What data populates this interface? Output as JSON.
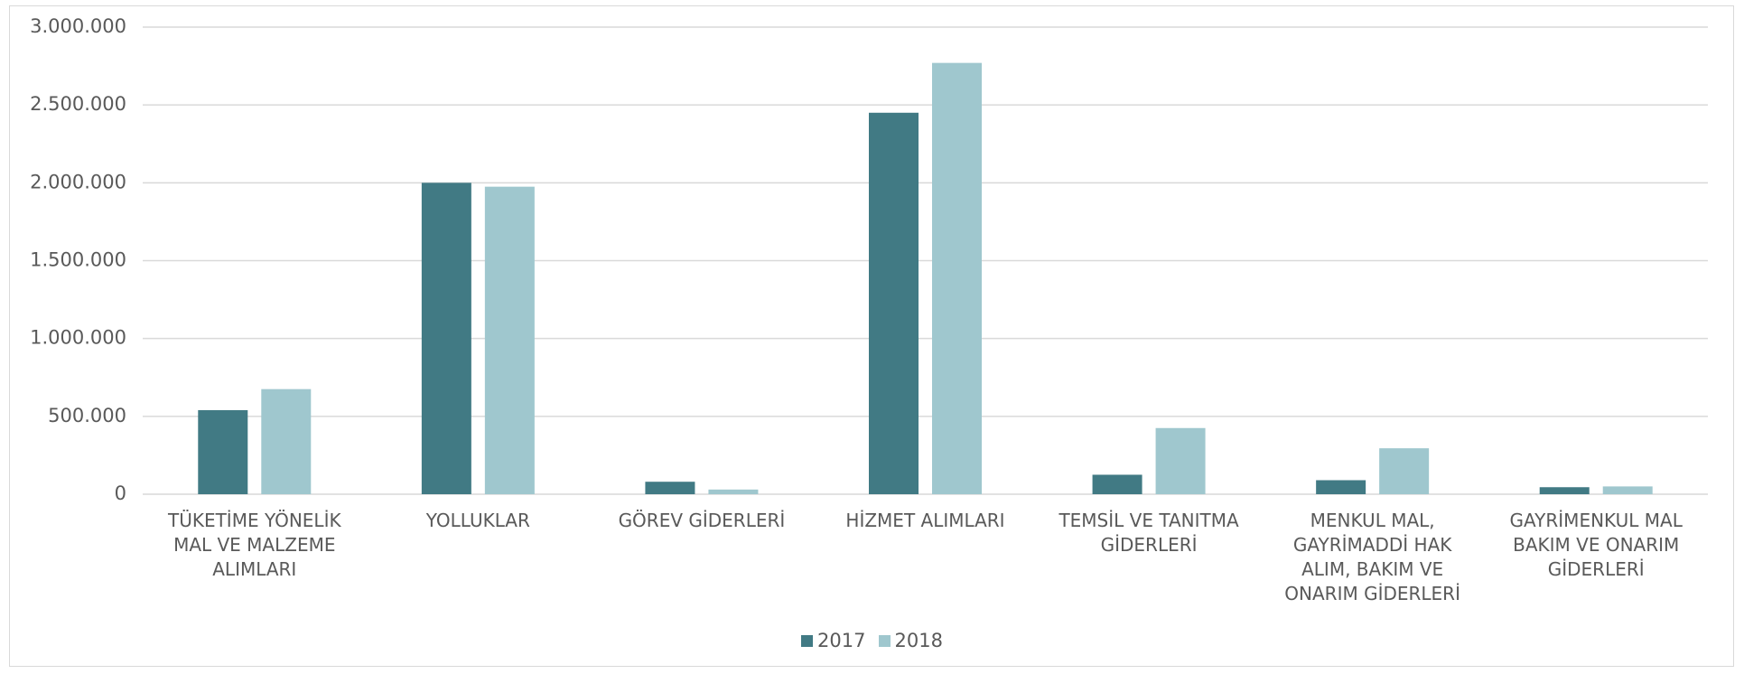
{
  "chart_data": {
    "type": "bar",
    "categories": [
      "TÜKETİME YÖNELİK MAL VE MALZEME ALIMLARI",
      "YOLLUKLAR",
      "GÖREV GİDERLERİ",
      "HİZMET ALIMLARI",
      "TEMSİL VE TANITMA GİDERLERİ",
      "MENKUL MAL, GAYRİMADDİ HAK ALIM, BAKIM VE ONARIM GİDERLERİ",
      "GAYRİMENKUL MAL BAKIM VE ONARIM GİDERLERİ"
    ],
    "series": [
      {
        "name": "2017",
        "color": "#417a84",
        "values": [
          540000,
          2000000,
          80000,
          2450000,
          125000,
          90000,
          45000
        ]
      },
      {
        "name": "2018",
        "color": "#9fc7ce",
        "values": [
          675000,
          1975000,
          30000,
          2770000,
          425000,
          295000,
          50000
        ]
      }
    ],
    "ylim": [
      0,
      3000000
    ],
    "yticks": [
      0,
      {
        "value": 500000,
        "label": "500.000"
      },
      {
        "value": 1000000,
        "label": "1.000.000"
      },
      {
        "value": 1500000,
        "label": "1.500.000"
      },
      {
        "value": 2000000,
        "label": "2.000.000"
      },
      {
        "value": 2500000,
        "label": "2.500.000"
      },
      {
        "value": 3000000,
        "label": "3.000.000"
      }
    ],
    "grid": true,
    "legend": "bottom"
  }
}
